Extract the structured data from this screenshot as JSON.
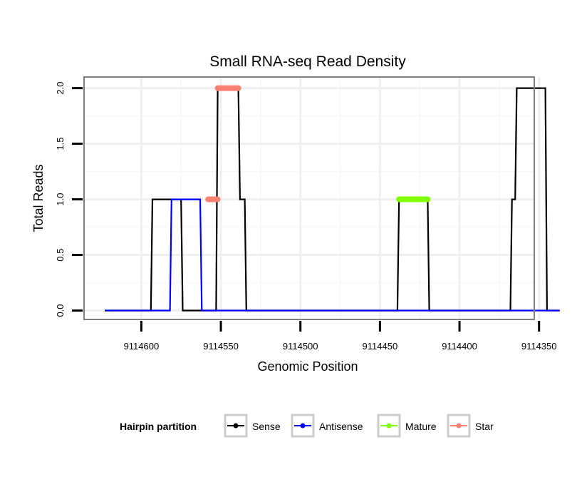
{
  "chart_data": {
    "type": "line",
    "title": "Small RNA-seq Read Density",
    "xlabel": "Genomic Position",
    "ylabel": "Total Reads",
    "xlim": [
      9114636,
      9114353
    ],
    "ylim": [
      -0.08,
      2.1
    ],
    "x_reversed": true,
    "grid": true,
    "x_ticks": [
      9114600,
      9114550,
      9114500,
      9114450,
      9114400,
      9114350
    ],
    "x_tick_labels": [
      "9114600",
      "9114550",
      "9114500",
      "9114450",
      "9114400",
      "9114350"
    ],
    "y_ticks": [
      0,
      0.5,
      1,
      1.5,
      2
    ],
    "y_tick_labels": [
      "0.0",
      "0.5",
      "1.0",
      "1.5",
      "2.0"
    ],
    "legend_title": "Hairpin partition",
    "legend_position": "bottom",
    "series": [
      {
        "name": "Sense",
        "color": "#000000",
        "style": "line",
        "points": [
          [
            9114623,
            0
          ],
          [
            9114594,
            0
          ],
          [
            9114593,
            1
          ],
          [
            9114575,
            1
          ],
          [
            9114574,
            0
          ],
          [
            9114553,
            0
          ],
          [
            9114552,
            2
          ],
          [
            9114539,
            2
          ],
          [
            9114538,
            1
          ],
          [
            9114535,
            1
          ],
          [
            9114534,
            0
          ],
          [
            9114439,
            0
          ],
          [
            9114438,
            1
          ],
          [
            9114420,
            1
          ],
          [
            9114419,
            0
          ],
          [
            9114368,
            0
          ],
          [
            9114367,
            1
          ],
          [
            9114365,
            1
          ],
          [
            9114364,
            2
          ],
          [
            9114346,
            2
          ],
          [
            9114345,
            0
          ],
          [
            9114337,
            0
          ]
        ]
      },
      {
        "name": "Antisense",
        "color": "#0000ff",
        "style": "line",
        "points": [
          [
            9114623,
            0
          ],
          [
            9114582,
            0
          ],
          [
            9114581,
            1
          ],
          [
            9114563,
            1
          ],
          [
            9114562,
            0
          ],
          [
            9114337,
            0
          ]
        ]
      },
      {
        "name": "Mature",
        "color": "#7fff00",
        "style": "segment",
        "points": [
          [
            9114438,
            1
          ],
          [
            9114420,
            1
          ]
        ]
      },
      {
        "name": "Star",
        "color": "#fa8072",
        "style": "segment",
        "points": [
          [
            9114558,
            1
          ],
          [
            9114552,
            1
          ],
          [
            9114552,
            2
          ],
          [
            9114539,
            2
          ]
        ]
      }
    ]
  }
}
